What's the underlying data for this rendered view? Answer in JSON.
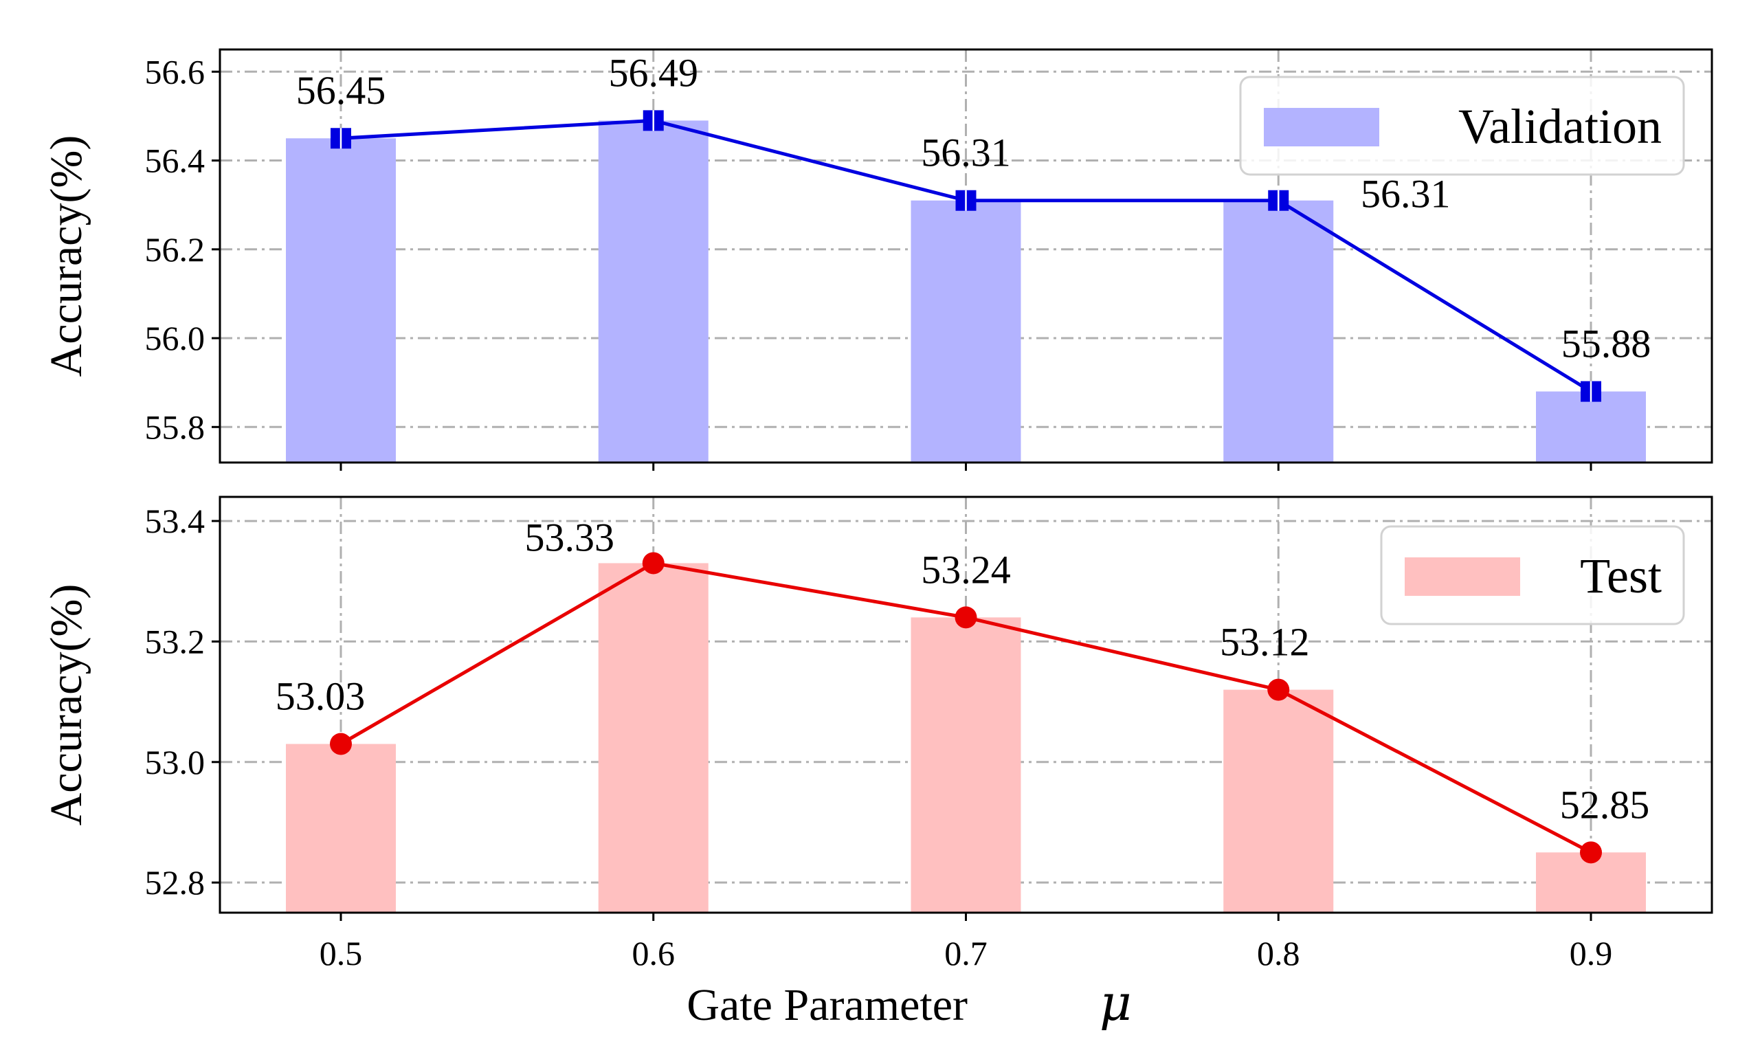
{
  "figure": {
    "xlabel": "Gate Parameter",
    "xlabel_symbol": "μ"
  },
  "chart_data": [
    {
      "type": "bar",
      "overlay": "line",
      "categories": [
        "0.5",
        "0.6",
        "0.7",
        "0.8",
        "0.9"
      ],
      "series": [
        {
          "name": "Validation",
          "values": [
            56.45,
            56.49,
            56.31,
            56.31,
            55.88
          ],
          "bar_color": "#b3b3ff",
          "line_color": "#0000e0",
          "marker": "square"
        }
      ],
      "data_labels": [
        "56.45",
        "56.49",
        "56.31",
        "56.31",
        "55.88"
      ],
      "ylabel": "Accuracy(%)",
      "ylim": [
        55.72,
        56.65
      ],
      "yticks": [
        "55.8",
        "56.0",
        "56.2",
        "56.4",
        "56.6"
      ],
      "grid": true,
      "legend_position": "top-right"
    },
    {
      "type": "bar",
      "overlay": "line",
      "categories": [
        "0.5",
        "0.6",
        "0.7",
        "0.8",
        "0.9"
      ],
      "series": [
        {
          "name": "Test",
          "values": [
            53.03,
            53.33,
            53.24,
            53.12,
            52.85
          ],
          "bar_color": "#ffc0c0",
          "line_color": "#e80000",
          "marker": "circle"
        }
      ],
      "data_labels": [
        "53.03",
        "53.33",
        "53.24",
        "53.12",
        "52.85"
      ],
      "ylabel": "Accuracy(%)",
      "ylim": [
        52.75,
        53.44
      ],
      "yticks": [
        "52.8",
        "53.0",
        "53.2",
        "53.4"
      ],
      "grid": true,
      "legend_position": "top-right"
    }
  ]
}
